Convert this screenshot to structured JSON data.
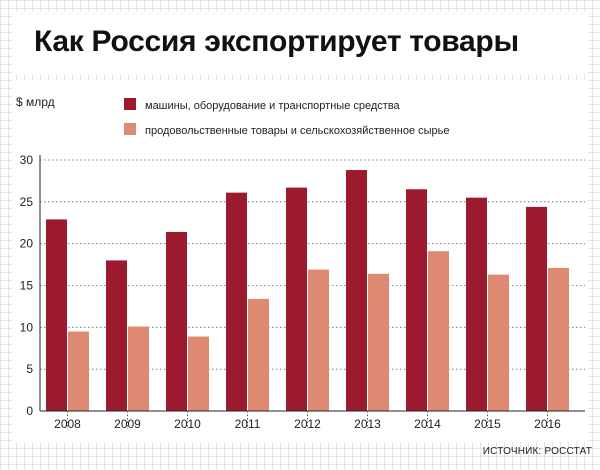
{
  "title": "Как Россия экспортирует товары",
  "source": "ИСТОЧНИК: РОССТАТ",
  "colors": {
    "machinery": "#9b1a2e",
    "food": "#de8a72"
  },
  "chart_data": {
    "type": "bar",
    "ylabel": "$ млрд",
    "ylim": [
      0,
      30
    ],
    "yticks": [
      0,
      5,
      10,
      15,
      20,
      25,
      30
    ],
    "categories": [
      "2008",
      "2009",
      "2010",
      "2011",
      "2012",
      "2013",
      "2014",
      "2015",
      "2016"
    ],
    "series": [
      {
        "name": "машины, оборудование и транспортные средства",
        "values": [
          22.9,
          18.0,
          21.4,
          26.1,
          26.7,
          28.8,
          26.5,
          25.5,
          24.4
        ]
      },
      {
        "name": "продовольственные товары и сельскохозяйственное сырье",
        "values": [
          9.5,
          10.1,
          8.9,
          13.4,
          16.9,
          16.4,
          19.1,
          16.3,
          17.1
        ]
      }
    ],
    "legend": "top",
    "grid": true
  }
}
